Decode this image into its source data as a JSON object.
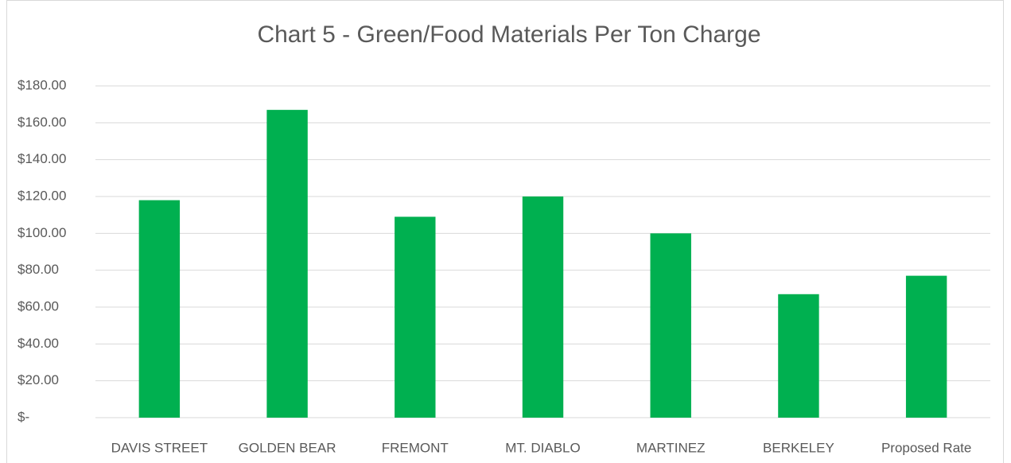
{
  "chart_data": {
    "type": "bar",
    "title": "Chart 5 - Green/Food Materials Per Ton Charge",
    "categories": [
      "DAVIS STREET",
      "GOLDEN BEAR",
      "FREMONT",
      "MT. DIABLO",
      "MARTINEZ",
      "BERKELEY",
      "Proposed Rate"
    ],
    "values": [
      118,
      167,
      109,
      120,
      100,
      67,
      77
    ],
    "color": "#00b050",
    "ylim": [
      0,
      180
    ],
    "yticks": [
      {
        "value": 0,
        "label": "$-"
      },
      {
        "value": 20,
        "label": "$20.00"
      },
      {
        "value": 40,
        "label": "$40.00"
      },
      {
        "value": 60,
        "label": "$60.00"
      },
      {
        "value": 80,
        "label": "$80.00"
      },
      {
        "value": 100,
        "label": "$100.00"
      },
      {
        "value": 120,
        "label": "$120.00"
      },
      {
        "value": 140,
        "label": "$140.00"
      },
      {
        "value": 160,
        "label": "$160.00"
      },
      {
        "value": 180,
        "label": "$180.00"
      }
    ],
    "grid": true
  }
}
